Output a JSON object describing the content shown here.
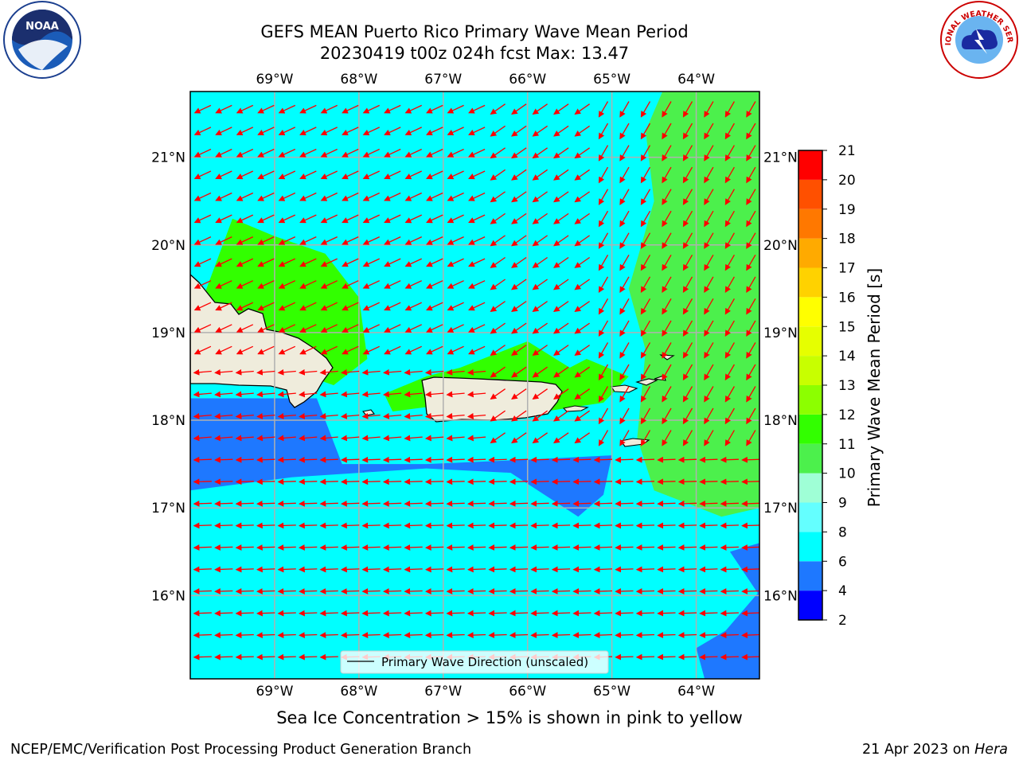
{
  "header": {
    "title_line1": "GEFS MEAN Puerto Rico Primary Wave Mean Period",
    "title_line2": "20230419 t00z 024h fcst   Max: 13.47"
  },
  "logos": {
    "left": {
      "icon": "noaa-logo",
      "text": "NOAA"
    },
    "right": {
      "icon": "nws-logo",
      "text": "NATIONAL WEATHER SERVICE"
    }
  },
  "chart_data": {
    "type": "heatmap",
    "title": "GEFS MEAN Puerto Rico Primary Wave Mean Period",
    "x_axis": {
      "range": [
        -70.0,
        -63.25
      ],
      "ticks": [
        -69,
        -68,
        -67,
        -66,
        -65,
        -64
      ],
      "tick_labels": [
        "69°W",
        "68°W",
        "67°W",
        "66°W",
        "65°W",
        "64°W"
      ]
    },
    "y_axis": {
      "range": [
        15.05,
        21.75
      ],
      "ticks": [
        16,
        17,
        18,
        19,
        20,
        21
      ],
      "tick_labels": [
        "16°N",
        "17°N",
        "18°N",
        "19°N",
        "20°N",
        "21°N"
      ]
    },
    "grid": true,
    "legend": {
      "placement": "bottom-center",
      "entries": [
        "Primary Wave Direction (unscaled)"
      ]
    },
    "colorbar": {
      "label": "Primary Wave Mean Period [s]",
      "levels": [
        2,
        4,
        6,
        8,
        9,
        10,
        11,
        12,
        13,
        14,
        15,
        16,
        17,
        18,
        19,
        20,
        21
      ],
      "colors": [
        "#0000ff",
        "#1e78ff",
        "#00ffff",
        "#64ffff",
        "#9fffd6",
        "#4cf04c",
        "#32ff00",
        "#8cff00",
        "#c8ff00",
        "#e6ff00",
        "#ffff00",
        "#ffd200",
        "#ffaa00",
        "#ff7800",
        "#ff5000",
        "#ff0000"
      ],
      "tick_labels": [
        "2",
        "4",
        "6",
        "8",
        "9",
        "10",
        "11",
        "12",
        "13",
        "14",
        "15",
        "16",
        "17",
        "18",
        "19",
        "20",
        "21"
      ]
    },
    "max_value": 13.47,
    "background_period_s": 7,
    "regions": [
      {
        "name": "short-period-band-south-coast",
        "period_s": 5,
        "polygon": [
          [
            -70,
            18.25
          ],
          [
            -68.5,
            18.25
          ],
          [
            -68.2,
            17.5
          ],
          [
            -67.2,
            17.5
          ],
          [
            -66,
            17.55
          ],
          [
            -65,
            17.6
          ],
          [
            -65.1,
            17.15
          ],
          [
            -65.4,
            16.9
          ],
          [
            -66.2,
            17.4
          ],
          [
            -67.2,
            17.45
          ],
          [
            -68.8,
            17.35
          ],
          [
            -70,
            17.2
          ]
        ]
      },
      {
        "name": "short-period-southeast",
        "period_s": 5,
        "polygon": [
          [
            -63.25,
            16.6
          ],
          [
            -63.6,
            16.5
          ],
          [
            -63.25,
            16.0
          ]
        ]
      },
      {
        "name": "short-period-far-southeast",
        "period_s": 5,
        "polygon": [
          [
            -63.25,
            16.05
          ],
          [
            -63.65,
            15.6
          ],
          [
            -64,
            15.4
          ],
          [
            -63.9,
            15.05
          ],
          [
            -63.25,
            15.05
          ]
        ]
      },
      {
        "name": "swell-zone-east",
        "period_s": 10,
        "polygon": [
          [
            -64.4,
            21.75
          ],
          [
            -63.25,
            21.75
          ],
          [
            -63.25,
            17.0
          ],
          [
            -63.7,
            16.9
          ],
          [
            -64.5,
            17.2
          ],
          [
            -64.7,
            17.8
          ],
          [
            -64.6,
            18.8
          ],
          [
            -64.8,
            19.5
          ],
          [
            -64.5,
            20.5
          ],
          [
            -64.6,
            21.3
          ]
        ]
      },
      {
        "name": "swell-zone-west",
        "period_s": 11,
        "polygon": [
          [
            -69.5,
            20.3
          ],
          [
            -69,
            20.1
          ],
          [
            -68.4,
            19.9
          ],
          [
            -68,
            19.4
          ],
          [
            -67.9,
            18.7
          ],
          [
            -68.3,
            18.4
          ],
          [
            -69.5,
            18.8
          ],
          [
            -70,
            19.0
          ]
        ]
      },
      {
        "name": "swell-zone-north-pr",
        "period_s": 11,
        "polygon": [
          [
            -67.2,
            18.5
          ],
          [
            -66.8,
            18.6
          ],
          [
            -66,
            18.9
          ],
          [
            -65.5,
            18.6
          ],
          [
            -65.3,
            18.7
          ],
          [
            -64.8,
            18.5
          ],
          [
            -65.1,
            18.2
          ],
          [
            -65.8,
            18.1
          ],
          [
            -66.8,
            18.2
          ],
          [
            -67.6,
            18.1
          ],
          [
            -67.7,
            18.3
          ]
        ]
      }
    ],
    "ice_note": "Sea Ice Concentration > 15% is shown in pink to yellow",
    "vector_field": {
      "name": "Primary Wave Direction (unscaled)",
      "color": "#ff0000",
      "spacing_deg": 0.25
    }
  },
  "footer": {
    "credit": "NCEP/EMC/Verification Post Processing Product Generation Branch",
    "date": "21 Apr 2023 on ",
    "host": "Hera"
  },
  "colors": {
    "land": "#efecdc",
    "grid": "#b0b0b0",
    "arrow": "#ff0000"
  }
}
